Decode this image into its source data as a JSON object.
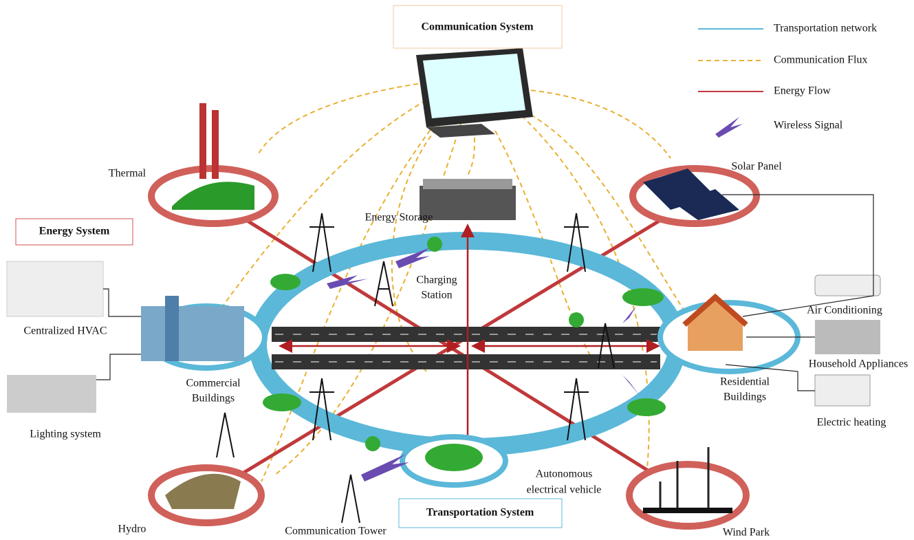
{
  "boxes": {
    "communication": "Communication System",
    "energy": "Energy System",
    "transportation": "Transportation System"
  },
  "legend": [
    "Transportation network",
    "Communication Flux",
    "Energy Flow",
    "Wireless Signal"
  ],
  "labels": {
    "thermal": "Thermal",
    "energy_storage": "Energy Storage",
    "solar_panel": "Solar Panel",
    "charging_station": [
      "Charging",
      "Station"
    ],
    "hvac": "Centralized HVAC",
    "commercial": [
      "Commercial",
      "Buildings"
    ],
    "lighting": "Lighting system",
    "air_conditioning": "Air Conditioning",
    "household": "Household Appliances",
    "residential": [
      "Residential",
      "Buildings"
    ],
    "heating": "Electric heating",
    "hydro": "Hydro",
    "tower": "Communication Tower",
    "vehicle": [
      "Autonomous",
      "electrical vehicle"
    ],
    "wind": "Wind Park"
  }
}
